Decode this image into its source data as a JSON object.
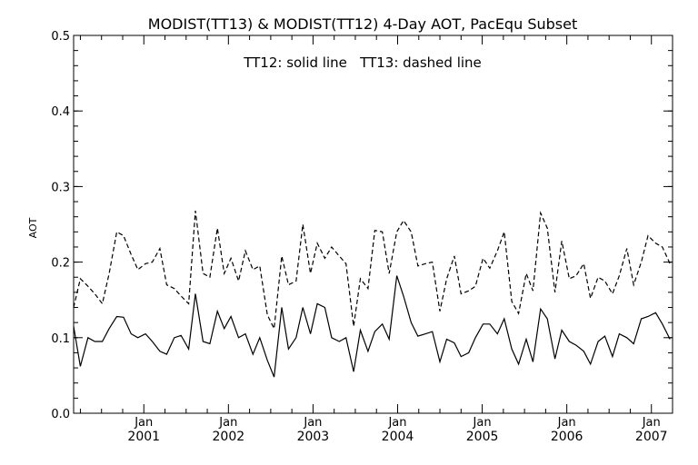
{
  "chart_data": {
    "type": "line",
    "title": "MODIST(TT13) & MODIST(TT12) 4-Day AOT, PacEqu Subset",
    "annotation": "TT12: solid line   TT13: dashed line",
    "ylabel": "AOT",
    "xlabel": "",
    "xlim": [
      2000.17,
      2007.25
    ],
    "ylim": [
      0.0,
      0.5
    ],
    "yticks": [
      {
        "value": 0.0,
        "label": "0.0"
      },
      {
        "value": 0.1,
        "label": "0.1"
      },
      {
        "value": 0.2,
        "label": "0.2"
      },
      {
        "value": 0.3,
        "label": "0.3"
      },
      {
        "value": 0.4,
        "label": "0.4"
      },
      {
        "value": 0.5,
        "label": "0.5"
      }
    ],
    "xticks": [
      {
        "value": 2001.0,
        "month": "Jan",
        "year": "2001"
      },
      {
        "value": 2002.0,
        "month": "Jan",
        "year": "2002"
      },
      {
        "value": 2003.0,
        "month": "Jan",
        "year": "2003"
      },
      {
        "value": 2004.0,
        "month": "Jan",
        "year": "2004"
      },
      {
        "value": 2005.0,
        "month": "Jan",
        "year": "2005"
      },
      {
        "value": 2006.0,
        "month": "Jan",
        "year": "2006"
      },
      {
        "value": 2007.0,
        "month": "Jan",
        "year": "2007"
      }
    ],
    "grid": false,
    "series": [
      {
        "key": "tt12",
        "style": "solid",
        "color": "#000000",
        "points": [
          [
            2000.17,
            0.115
          ],
          [
            2000.25,
            0.062
          ],
          [
            2000.34,
            0.1
          ],
          [
            2000.42,
            0.095
          ],
          [
            2000.51,
            0.095
          ],
          [
            2000.59,
            0.112
          ],
          [
            2000.68,
            0.128
          ],
          [
            2000.76,
            0.127
          ],
          [
            2000.85,
            0.105
          ],
          [
            2000.93,
            0.1
          ],
          [
            2001.02,
            0.105
          ],
          [
            2001.1,
            0.095
          ],
          [
            2001.19,
            0.082
          ],
          [
            2001.27,
            0.078
          ],
          [
            2001.36,
            0.1
          ],
          [
            2001.44,
            0.103
          ],
          [
            2001.53,
            0.085
          ],
          [
            2001.61,
            0.158
          ],
          [
            2001.7,
            0.095
          ],
          [
            2001.78,
            0.092
          ],
          [
            2001.87,
            0.135
          ],
          [
            2001.95,
            0.112
          ],
          [
            2002.03,
            0.128
          ],
          [
            2002.12,
            0.1
          ],
          [
            2002.2,
            0.105
          ],
          [
            2002.29,
            0.078
          ],
          [
            2002.37,
            0.1
          ],
          [
            2002.46,
            0.07
          ],
          [
            2002.54,
            0.048
          ],
          [
            2002.63,
            0.14
          ],
          [
            2002.71,
            0.085
          ],
          [
            2002.8,
            0.1
          ],
          [
            2002.88,
            0.14
          ],
          [
            2002.97,
            0.105
          ],
          [
            2003.05,
            0.145
          ],
          [
            2003.14,
            0.14
          ],
          [
            2003.22,
            0.1
          ],
          [
            2003.31,
            0.095
          ],
          [
            2003.39,
            0.1
          ],
          [
            2003.48,
            0.055
          ],
          [
            2003.56,
            0.11
          ],
          [
            2003.65,
            0.082
          ],
          [
            2003.73,
            0.108
          ],
          [
            2003.82,
            0.118
          ],
          [
            2003.9,
            0.098
          ],
          [
            2003.99,
            0.182
          ],
          [
            2004.07,
            0.155
          ],
          [
            2004.16,
            0.12
          ],
          [
            2004.24,
            0.102
          ],
          [
            2004.33,
            0.105
          ],
          [
            2004.41,
            0.108
          ],
          [
            2004.5,
            0.068
          ],
          [
            2004.58,
            0.098
          ],
          [
            2004.67,
            0.093
          ],
          [
            2004.75,
            0.075
          ],
          [
            2004.84,
            0.08
          ],
          [
            2004.92,
            0.1
          ],
          [
            2005.01,
            0.118
          ],
          [
            2005.09,
            0.118
          ],
          [
            2005.18,
            0.105
          ],
          [
            2005.26,
            0.125
          ],
          [
            2005.35,
            0.085
          ],
          [
            2005.43,
            0.065
          ],
          [
            2005.52,
            0.098
          ],
          [
            2005.6,
            0.068
          ],
          [
            2005.69,
            0.138
          ],
          [
            2005.77,
            0.125
          ],
          [
            2005.86,
            0.072
          ],
          [
            2005.94,
            0.11
          ],
          [
            2006.03,
            0.095
          ],
          [
            2006.11,
            0.09
          ],
          [
            2006.2,
            0.082
          ],
          [
            2006.28,
            0.065
          ],
          [
            2006.37,
            0.095
          ],
          [
            2006.45,
            0.102
          ],
          [
            2006.54,
            0.075
          ],
          [
            2006.62,
            0.105
          ],
          [
            2006.71,
            0.1
          ],
          [
            2006.79,
            0.092
          ],
          [
            2006.88,
            0.125
          ],
          [
            2006.96,
            0.128
          ],
          [
            2007.05,
            0.133
          ],
          [
            2007.13,
            0.118
          ],
          [
            2007.22,
            0.098
          ]
        ]
      },
      {
        "key": "tt13",
        "style": "dashed",
        "color": "#000000",
        "points": [
          [
            2000.17,
            0.14
          ],
          [
            2000.25,
            0.178
          ],
          [
            2000.34,
            0.168
          ],
          [
            2000.42,
            0.158
          ],
          [
            2000.51,
            0.145
          ],
          [
            2000.59,
            0.185
          ],
          [
            2000.68,
            0.24
          ],
          [
            2000.76,
            0.235
          ],
          [
            2000.85,
            0.21
          ],
          [
            2000.93,
            0.19
          ],
          [
            2001.02,
            0.198
          ],
          [
            2001.1,
            0.2
          ],
          [
            2001.19,
            0.218
          ],
          [
            2001.27,
            0.17
          ],
          [
            2001.36,
            0.165
          ],
          [
            2001.44,
            0.155
          ],
          [
            2001.53,
            0.145
          ],
          [
            2001.61,
            0.268
          ],
          [
            2001.7,
            0.185
          ],
          [
            2001.78,
            0.18
          ],
          [
            2001.87,
            0.245
          ],
          [
            2001.95,
            0.185
          ],
          [
            2002.03,
            0.205
          ],
          [
            2002.12,
            0.175
          ],
          [
            2002.2,
            0.215
          ],
          [
            2002.29,
            0.19
          ],
          [
            2002.37,
            0.195
          ],
          [
            2002.46,
            0.13
          ],
          [
            2002.54,
            0.112
          ],
          [
            2002.63,
            0.208
          ],
          [
            2002.71,
            0.17
          ],
          [
            2002.8,
            0.175
          ],
          [
            2002.88,
            0.25
          ],
          [
            2002.97,
            0.185
          ],
          [
            2003.05,
            0.225
          ],
          [
            2003.14,
            0.205
          ],
          [
            2003.22,
            0.22
          ],
          [
            2003.31,
            0.208
          ],
          [
            2003.39,
            0.198
          ],
          [
            2003.48,
            0.115
          ],
          [
            2003.56,
            0.178
          ],
          [
            2003.65,
            0.165
          ],
          [
            2003.73,
            0.242
          ],
          [
            2003.82,
            0.24
          ],
          [
            2003.9,
            0.185
          ],
          [
            2003.99,
            0.24
          ],
          [
            2004.07,
            0.255
          ],
          [
            2004.16,
            0.24
          ],
          [
            2004.24,
            0.195
          ],
          [
            2004.33,
            0.198
          ],
          [
            2004.41,
            0.2
          ],
          [
            2004.5,
            0.135
          ],
          [
            2004.58,
            0.178
          ],
          [
            2004.67,
            0.208
          ],
          [
            2004.75,
            0.158
          ],
          [
            2004.84,
            0.162
          ],
          [
            2004.92,
            0.168
          ],
          [
            2005.01,
            0.205
          ],
          [
            2005.09,
            0.192
          ],
          [
            2005.18,
            0.215
          ],
          [
            2005.26,
            0.24
          ],
          [
            2005.35,
            0.148
          ],
          [
            2005.43,
            0.132
          ],
          [
            2005.52,
            0.185
          ],
          [
            2005.6,
            0.162
          ],
          [
            2005.69,
            0.265
          ],
          [
            2005.77,
            0.245
          ],
          [
            2005.86,
            0.16
          ],
          [
            2005.94,
            0.228
          ],
          [
            2006.03,
            0.178
          ],
          [
            2006.11,
            0.182
          ],
          [
            2006.2,
            0.198
          ],
          [
            2006.28,
            0.152
          ],
          [
            2006.37,
            0.18
          ],
          [
            2006.45,
            0.175
          ],
          [
            2006.54,
            0.158
          ],
          [
            2006.62,
            0.182
          ],
          [
            2006.71,
            0.218
          ],
          [
            2006.79,
            0.17
          ],
          [
            2006.88,
            0.2
          ],
          [
            2006.96,
            0.235
          ],
          [
            2007.05,
            0.225
          ],
          [
            2007.13,
            0.22
          ],
          [
            2007.22,
            0.198
          ]
        ]
      }
    ]
  }
}
